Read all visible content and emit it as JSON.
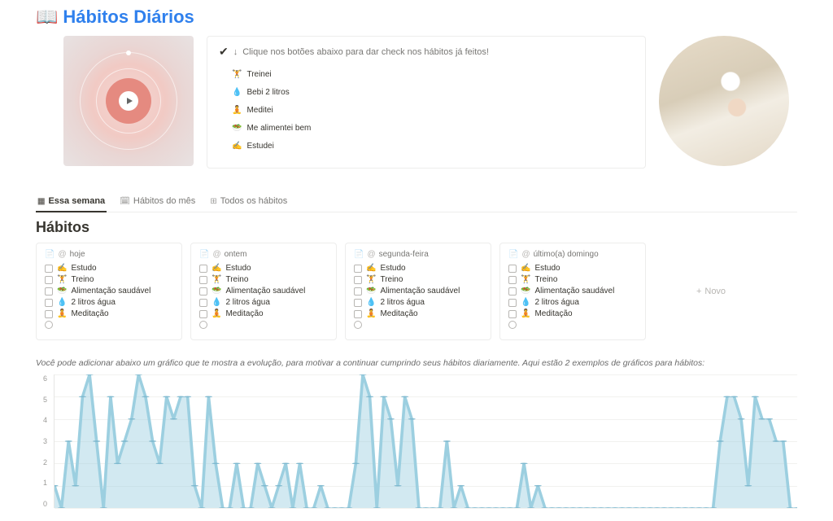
{
  "page": {
    "emoji": "📖",
    "title": "Hábitos Diários"
  },
  "checklist": {
    "tick": "✔",
    "arrow": "↓",
    "instruction": "Clique nos botões abaixo para dar check nos hábitos já feitos!",
    "items": [
      {
        "emoji": "🏋️",
        "label": "Treinei"
      },
      {
        "emoji": "💧",
        "label": "Bebi 2 litros"
      },
      {
        "emoji": "🧘",
        "label": "Meditei"
      },
      {
        "emoji": "🥗",
        "label": "Me alimentei bem"
      },
      {
        "emoji": "✍️",
        "label": "Estudei"
      }
    ]
  },
  "tabs": [
    {
      "icon": "▦",
      "label": "Essa semana",
      "active": true
    },
    {
      "icon": "🗓",
      "label": "Hábitos do mês",
      "active": false
    },
    {
      "icon": "⊞",
      "label": "Todos os hábitos",
      "active": false
    }
  ],
  "section_title": "Hábitos",
  "cards": [
    {
      "title": "hoje"
    },
    {
      "title": "ontem"
    },
    {
      "title": "segunda-feira"
    },
    {
      "title": "último(a) domingo"
    }
  ],
  "card_tasks": [
    {
      "emoji": "✍️",
      "label": "Estudo"
    },
    {
      "emoji": "🏋️",
      "label": "Treino"
    },
    {
      "emoji": "🥗",
      "label": "Alimentação saudável"
    },
    {
      "emoji": "💧",
      "label": "2 litros água"
    },
    {
      "emoji": "🧘",
      "label": "Meditação"
    }
  ],
  "new_label": "Novo",
  "chart_note": "Você pode adicionar abaixo um gráfico que te mostra a evolução, para motivar a continuar cumprindo seus hábitos diariamente. Aqui estão 2 exemplos de gráficos para hábitos:",
  "chart": {
    "type": "area",
    "ylim": [
      0,
      6
    ],
    "yticks": [
      6,
      5,
      4,
      3,
      2,
      1,
      0
    ],
    "line_color": "#9ccfe0",
    "point_color": "#7fb9cf",
    "fill_color": "rgba(156,207,224,0.45)",
    "grid_color": "#f1f1ef",
    "axis_color": "#e6e6e4",
    "label_color": "#9b9a97",
    "values": [
      1,
      0,
      3,
      1,
      5,
      6,
      3,
      0,
      5,
      2,
      3,
      4,
      6,
      5,
      3,
      2,
      5,
      4,
      5,
      5,
      1,
      0,
      5,
      2,
      0,
      0,
      2,
      0,
      0,
      2,
      1,
      0,
      1,
      2,
      0,
      2,
      0,
      0,
      1,
      0,
      0,
      0,
      0,
      2,
      6,
      5,
      0,
      5,
      4,
      1,
      5,
      4,
      0,
      0,
      0,
      0,
      3,
      0,
      1,
      0,
      0,
      0,
      0,
      0,
      0,
      0,
      0,
      2,
      0,
      1,
      0,
      0,
      0,
      0,
      0,
      0,
      0,
      0,
      0,
      0,
      0,
      0,
      0,
      0,
      0,
      0,
      0,
      0,
      0,
      0,
      0,
      0,
      0,
      0,
      0,
      3,
      5,
      5,
      4,
      1,
      5,
      4,
      4,
      3,
      3,
      0,
      0
    ]
  }
}
